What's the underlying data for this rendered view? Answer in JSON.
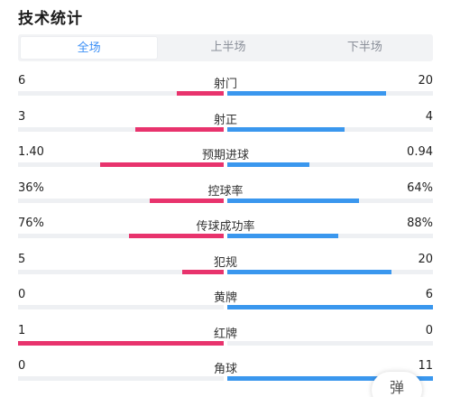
{
  "header": {
    "title": "技术统计"
  },
  "tabs": [
    {
      "label": "全场",
      "active": true
    },
    {
      "label": "上半场",
      "active": false
    },
    {
      "label": "下半场",
      "active": false
    }
  ],
  "colors": {
    "home": "#e8336d",
    "away": "#3a97ee",
    "active_tab": "#3b8ff6"
  },
  "stats": [
    {
      "label": "射门",
      "home": "6",
      "away": "20",
      "home_share": 0.23,
      "away_share": 0.77
    },
    {
      "label": "射正",
      "home": "3",
      "away": "4",
      "home_share": 0.43,
      "away_share": 0.57
    },
    {
      "label": "预期进球",
      "home": "1.40",
      "away": "0.94",
      "home_share": 0.6,
      "away_share": 0.4
    },
    {
      "label": "控球率",
      "home": "36%",
      "away": "64%",
      "home_share": 0.36,
      "away_share": 0.64
    },
    {
      "label": "传球成功率",
      "home": "76%",
      "away": "88%",
      "home_share": 0.46,
      "away_share": 0.54
    },
    {
      "label": "犯规",
      "home": "5",
      "away": "20",
      "home_share": 0.2,
      "away_share": 0.8
    },
    {
      "label": "黄牌",
      "home": "0",
      "away": "6",
      "home_share": 0.0,
      "away_share": 1.0
    },
    {
      "label": "红牌",
      "home": "1",
      "away": "0",
      "home_share": 1.0,
      "away_share": 0.0
    },
    {
      "label": "角球",
      "home": "0",
      "away": "11",
      "home_share": 0.0,
      "away_share": 1.0
    }
  ],
  "float_button": {
    "label": "弹"
  }
}
